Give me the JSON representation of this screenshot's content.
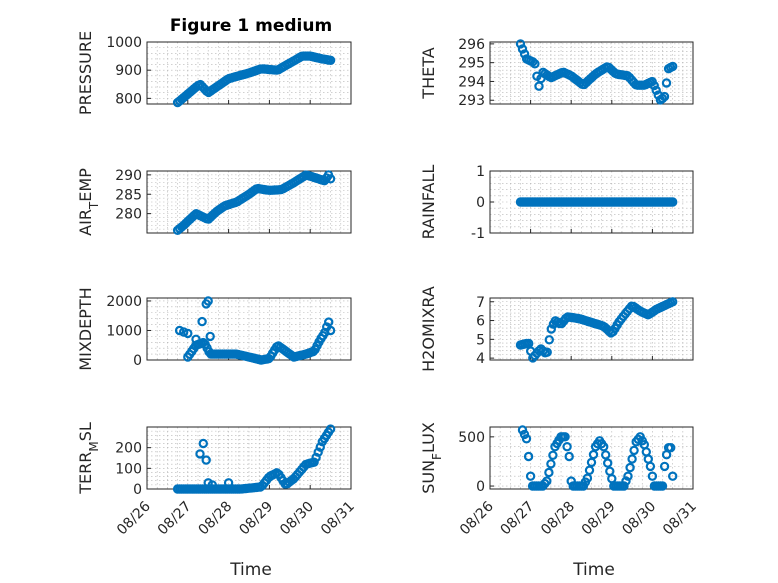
{
  "figure": {
    "title": "Figure 1 medium",
    "xlabel": "Time",
    "marker_color": "#0072BD",
    "x_ticks": [
      "08/26",
      "08/27",
      "08/28",
      "08/29",
      "08/30",
      "08/31"
    ],
    "x_range_days": [
      26,
      31
    ]
  },
  "chart_data": [
    {
      "type": "scatter",
      "name": "pressure",
      "ylabel": "PRESSURE",
      "ylim": [
        780,
        1000
      ],
      "yticks": [
        800,
        900,
        1000
      ],
      "grid": true,
      "keys": [
        [
          26.75,
          785
        ],
        [
          27.0,
          815
        ],
        [
          27.2,
          840
        ],
        [
          27.3,
          850
        ],
        [
          27.5,
          820
        ],
        [
          27.7,
          840
        ],
        [
          28.0,
          870
        ],
        [
          28.5,
          890
        ],
        [
          28.8,
          905
        ],
        [
          29.2,
          900
        ],
        [
          29.5,
          925
        ],
        [
          29.8,
          950
        ],
        [
          30.0,
          950
        ],
        [
          30.3,
          940
        ],
        [
          30.5,
          935
        ]
      ]
    },
    {
      "type": "scatter",
      "name": "theta",
      "ylabel": "THETA",
      "ylim": [
        292.8,
        296.1
      ],
      "yticks": [
        293,
        294,
        295,
        296
      ],
      "grid": true,
      "keys": [
        [
          26.75,
          296.0
        ],
        [
          26.9,
          295.2
        ],
        [
          27.1,
          295.0
        ],
        [
          27.2,
          293.7
        ],
        [
          27.3,
          294.5
        ],
        [
          27.5,
          294.2
        ],
        [
          27.8,
          294.5
        ],
        [
          28.0,
          294.3
        ],
        [
          28.3,
          293.8
        ],
        [
          28.6,
          294.4
        ],
        [
          28.9,
          294.8
        ],
        [
          29.1,
          294.4
        ],
        [
          29.4,
          294.3
        ],
        [
          29.6,
          293.8
        ],
        [
          29.8,
          293.8
        ],
        [
          30.0,
          294.0
        ],
        [
          30.2,
          293.0
        ],
        [
          30.3,
          293.2
        ],
        [
          30.4,
          294.7
        ],
        [
          30.5,
          294.8
        ]
      ]
    },
    {
      "type": "scatter",
      "name": "air_temp",
      "ylabel_main": "AIR",
      "ylabel_sub": "T",
      "ylabel_rest": "EMP",
      "ylim": [
        275,
        291
      ],
      "yticks": [
        280,
        285,
        290
      ],
      "grid": true,
      "keys": [
        [
          26.75,
          275.7
        ],
        [
          26.9,
          277.0
        ],
        [
          27.1,
          279.0
        ],
        [
          27.2,
          280.0
        ],
        [
          27.5,
          278.5
        ],
        [
          27.7,
          280.5
        ],
        [
          27.9,
          282.0
        ],
        [
          28.2,
          283.0
        ],
        [
          28.5,
          285.0
        ],
        [
          28.7,
          286.5
        ],
        [
          29.0,
          286.0
        ],
        [
          29.3,
          286.2
        ],
        [
          29.6,
          288.0
        ],
        [
          29.9,
          290.0
        ],
        [
          30.2,
          289.0
        ],
        [
          30.35,
          288.5
        ],
        [
          30.45,
          290.0
        ],
        [
          30.5,
          289.0
        ]
      ]
    },
    {
      "type": "scatter",
      "name": "rainfall",
      "ylabel": "RAINFALL",
      "ylim": [
        -1,
        1
      ],
      "yticks": [
        -1,
        0,
        1
      ],
      "grid": true,
      "keys": [
        [
          26.75,
          0
        ],
        [
          30.5,
          0
        ]
      ]
    },
    {
      "type": "scatter",
      "name": "mixdepth",
      "ylabel": "MIXDEPTH",
      "ylim": [
        0,
        2100
      ],
      "yticks": [
        0,
        1000,
        2000
      ],
      "grid": true,
      "extra_points": [
        [
          26.8,
          1000
        ],
        [
          26.9,
          950
        ],
        [
          27.0,
          900
        ],
        [
          27.2,
          700
        ],
        [
          27.35,
          1300
        ],
        [
          27.45,
          1900
        ],
        [
          27.5,
          2000
        ],
        [
          27.55,
          800
        ]
      ],
      "keys": [
        [
          27.0,
          100
        ],
        [
          27.2,
          500
        ],
        [
          27.4,
          600
        ],
        [
          27.55,
          200
        ],
        [
          27.8,
          200
        ],
        [
          28.2,
          200
        ],
        [
          28.5,
          100
        ],
        [
          28.8,
          0
        ],
        [
          29.0,
          50
        ],
        [
          29.2,
          500
        ],
        [
          29.4,
          300
        ],
        [
          29.6,
          100
        ],
        [
          29.9,
          200
        ],
        [
          30.1,
          300
        ],
        [
          30.25,
          700
        ],
        [
          30.35,
          900
        ],
        [
          30.45,
          1300
        ],
        [
          30.5,
          1000
        ]
      ]
    },
    {
      "type": "scatter",
      "name": "h2omixra",
      "ylabel": "H2OMIXRA",
      "ylim": [
        3.9,
        7.2
      ],
      "yticks": [
        4,
        5,
        6,
        7
      ],
      "grid": true,
      "keys": [
        [
          26.75,
          4.7
        ],
        [
          26.95,
          4.8
        ],
        [
          27.05,
          4.0
        ],
        [
          27.25,
          4.5
        ],
        [
          27.4,
          4.2
        ],
        [
          27.5,
          5.5
        ],
        [
          27.6,
          6.0
        ],
        [
          27.75,
          5.8
        ],
        [
          27.9,
          6.2
        ],
        [
          28.2,
          6.1
        ],
        [
          28.5,
          5.9
        ],
        [
          28.8,
          5.7
        ],
        [
          29.0,
          5.3
        ],
        [
          29.2,
          6.0
        ],
        [
          29.5,
          6.8
        ],
        [
          29.7,
          6.5
        ],
        [
          29.9,
          6.3
        ],
        [
          30.1,
          6.6
        ],
        [
          30.3,
          6.8
        ],
        [
          30.5,
          7.0
        ]
      ]
    },
    {
      "type": "scatter",
      "name": "terr_msl",
      "ylabel_main": "TERR",
      "ylabel_sub": "M",
      "ylabel_rest": "SL",
      "ylim": [
        0,
        300
      ],
      "yticks": [
        0,
        100,
        200
      ],
      "grid": true,
      "extra_points": [
        [
          27.3,
          170
        ],
        [
          27.38,
          220
        ],
        [
          27.45,
          140
        ],
        [
          27.5,
          30
        ],
        [
          27.6,
          20
        ],
        [
          28.0,
          30
        ]
      ],
      "keys": [
        [
          26.75,
          0
        ],
        [
          27.2,
          0
        ],
        [
          27.7,
          0
        ],
        [
          28.3,
          0
        ],
        [
          28.8,
          10
        ],
        [
          29.0,
          60
        ],
        [
          29.2,
          80
        ],
        [
          29.4,
          20
        ],
        [
          29.6,
          50
        ],
        [
          29.9,
          120
        ],
        [
          30.1,
          130
        ],
        [
          30.3,
          230
        ],
        [
          30.5,
          290
        ]
      ]
    },
    {
      "type": "scatter",
      "name": "sun_flux",
      "ylabel_main": "SUN",
      "ylabel_sub": "F",
      "ylabel_rest": "LUX",
      "ylim": [
        -30,
        600
      ],
      "yticks": [
        0,
        500
      ],
      "grid": true,
      "keys": [
        [
          26.8,
          570
        ],
        [
          26.9,
          480
        ],
        [
          26.95,
          300
        ],
        [
          27.0,
          100
        ],
        [
          27.05,
          0
        ],
        [
          27.3,
          0
        ],
        [
          27.4,
          50
        ],
        [
          27.6,
          400
        ],
        [
          27.75,
          500
        ],
        [
          27.85,
          500
        ],
        [
          27.95,
          300
        ],
        [
          28.0,
          50
        ],
        [
          28.05,
          0
        ],
        [
          28.3,
          0
        ],
        [
          28.4,
          80
        ],
        [
          28.6,
          400
        ],
        [
          28.7,
          460
        ],
        [
          28.8,
          400
        ],
        [
          28.95,
          150
        ],
        [
          29.05,
          0
        ],
        [
          29.3,
          0
        ],
        [
          29.4,
          100
        ],
        [
          29.6,
          450
        ],
        [
          29.7,
          500
        ],
        [
          29.8,
          420
        ],
        [
          29.95,
          200
        ],
        [
          30.05,
          0
        ],
        [
          30.25,
          0
        ],
        [
          30.3,
          200
        ],
        [
          30.38,
          390
        ],
        [
          30.45,
          390
        ],
        [
          30.5,
          100
        ]
      ]
    }
  ]
}
